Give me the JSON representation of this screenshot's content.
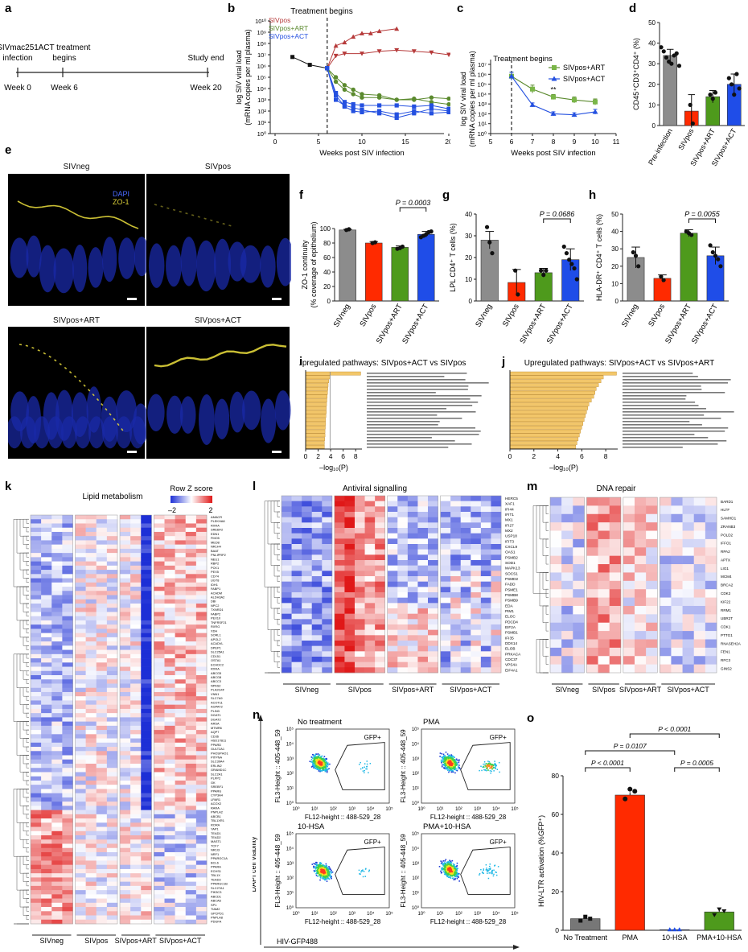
{
  "panel_labels": {
    "a": "a",
    "b": "b",
    "c": "c",
    "d": "d",
    "e": "e",
    "f": "f",
    "g": "g",
    "h": "h",
    "i": "i",
    "j": "j",
    "k": "k",
    "l": "l",
    "m": "m",
    "n": "n",
    "o": "o"
  },
  "colors": {
    "SIVneg": "#8c8c8c",
    "SIVpos": "#ff2a00",
    "SIVpos+ART": "#4e9a1c",
    "SIVpos+ACT": "#1f4de8",
    "b_SIVpos": "#b63a3a",
    "b_ART": "#5b8a2e",
    "b_ACT": "#2450e0",
    "heat_low": "#1d2fd6",
    "heat_high": "#e01818",
    "bar_pathway": "#f2c66a",
    "yellow": "#e0d43a"
  },
  "a": {
    "events": [
      {
        "label": "SIVmac251\ninfection",
        "week": "Week 0"
      },
      {
        "label": "ACT treatment\nbegins",
        "week": "Week 6"
      },
      {
        "label": "Study end",
        "week": "Week 20"
      }
    ]
  },
  "b": {
    "title": "Treatment begins",
    "legend": [
      "SIVpos",
      "SIVpos+ART",
      "SIVpos+ACT"
    ],
    "ylabel_1": "log SIV viral load",
    "ylabel_2": "(mRNA copies per ml plasma)",
    "xlabel": "Weeks post SIV infection",
    "xticks": [
      "0",
      "5",
      "10",
      "15",
      "20"
    ],
    "yticks": [
      "10⁰",
      "10¹",
      "10²",
      "10³",
      "10⁴",
      "10⁵",
      "10⁶",
      "10⁷",
      "10⁸",
      "10⁹",
      "10¹⁰"
    ]
  },
  "c": {
    "title": "Treatment begins",
    "legend": [
      "SIVpos+ART",
      "SIVpos+ACT"
    ],
    "ylabel_1": "log SIV viral load",
    "ylabel_2": "(mRNA copies per ml plasma)",
    "xlabel": "Weeks post SIV infection",
    "xticks": [
      "5",
      "6",
      "7",
      "8",
      "9",
      "10",
      "11"
    ],
    "yticks": [
      "10⁰",
      "10¹",
      "10²",
      "10³",
      "10⁴",
      "10⁵",
      "10⁶",
      "10⁷"
    ],
    "sig": "**"
  },
  "d": {
    "ylabel": "CD45⁺CD3⁺CD4⁺ (%)",
    "yticks": [
      "0",
      "10",
      "20",
      "30",
      "40",
      "50"
    ],
    "categories": [
      "Pre-infection",
      "SIVpos",
      "SIVpos+ART",
      "SIVpos+ACT"
    ]
  },
  "e": {
    "titles": [
      "SIVneg",
      "SIVpos",
      "SIVpos+ART",
      "SIVpos+ACT"
    ],
    "legend_dapi": "DAPI",
    "legend_zo": "ZO-1"
  },
  "f": {
    "ylabel_1": "ZO-1 continuity",
    "ylabel_2": "(% coverage of epithelium)",
    "yticks": [
      "0",
      "20",
      "40",
      "60",
      "80",
      "100"
    ],
    "pval": "P = 0.0003",
    "categories": [
      "SIVneg",
      "SIVpos",
      "SIVpos+ART",
      "SIVpos+ACT"
    ]
  },
  "g": {
    "ylabel": "LPL CD4⁺ T cells (%)",
    "yticks": [
      "0",
      "10",
      "20",
      "30",
      "40"
    ],
    "pval": "P = 0.0686",
    "categories": [
      "SIVneg",
      "SIVpos",
      "SIVpos+ART",
      "SIVpos+ACT"
    ]
  },
  "h": {
    "ylabel": "HLA-DR⁺ CD4⁺ T cells (%)",
    "yticks": [
      "0",
      "10",
      "20",
      "30",
      "40",
      "50"
    ],
    "pval": "P = 0.0055",
    "categories": [
      "SIVneg",
      "SIVpos",
      "SIVpos+ART",
      "SIVpos+ACT"
    ]
  },
  "i": {
    "title": "Upregulated pathways: SIVpos+ACT vs SIVpos",
    "xlabel": "–log₁₀(P)",
    "xticks": [
      "0",
      "2",
      "4",
      "6",
      "8"
    ]
  },
  "j": {
    "title": "Upregulated pathways: SIVpos+ACT vs SIVpos+ART",
    "xlabel": "–log₁₀(P)",
    "xticks": [
      "0",
      "2",
      "4",
      "6",
      "8"
    ]
  },
  "k": {
    "title": "Lipid metabolism",
    "scale_title": "Row Z score",
    "scale_min": "–2",
    "scale_max": "2",
    "groups": [
      "SIVneg",
      "SIVpos",
      "SIVpos+ART",
      "SIVpos+ACT"
    ],
    "genes": [
      "AMACR",
      "PLEKHA8",
      "RXRA",
      "SREBF2",
      "EDN1",
      "FMO5",
      "MED8",
      "NR1H4",
      "BAAT",
      "PNLIPRP2",
      "NEU1",
      "RBP2",
      "PCK1",
      "PEX5",
      "CD74",
      "UGT8",
      "IDH1",
      "FABP1",
      "ACADM",
      "ALDH3A2",
      "DBI",
      "NPC2",
      "TXNRD1",
      "FABP2",
      "PEX10",
      "TNFRSF21",
      "RXRG",
      "XDH",
      "SORL1",
      "APOL2",
      "ACADVL",
      "DPEP1",
      "SLC25A1",
      "CD151",
      "OSTA1",
      "ECHDC2",
      "RXRA",
      "ABCG5",
      "ABCG8",
      "ABCC3",
      "NPAS2",
      "PLA2G4F",
      "VNN1",
      "SLC7A9",
      "ACOT11",
      "AGPAT2",
      "PLIN3",
      "DGAT1",
      "DGAT2",
      "ARSA",
      "MTMR6",
      "AQP7",
      "CD36",
      "HSD17B11",
      "PPARD",
      "GULT2A1",
      "PHOSPHO1",
      "PITPNA",
      "SLC39A4",
      "ERLIN2",
      "GRAMD1C",
      "SLC2A1",
      "PLPP2",
      "GK",
      "SREBF1",
      "PPARG",
      "CYP3A4",
      "LPAR1",
      "ACOX2",
      "RARA",
      "PNPLA2",
      "ABCB1",
      "TBL1XR1",
      "RORA",
      "YAP1",
      "TEAD1",
      "TEAD2",
      "MAST1",
      "TCF7",
      "NR1I3",
      "NRF1",
      "PPARGC1A",
      "BCL6",
      "PPARA",
      "ECHS1",
      "TBL1X",
      "TEAD3",
      "PPARGC1B",
      "SLC27A1",
      "PIK3C3",
      "ABCD1",
      "ABCA6",
      "SP1",
      "TIAM2",
      "GPCPD1",
      "PNPLA8",
      "PDGFA"
    ]
  },
  "l": {
    "title": "Antiviral signalling",
    "groups": [
      "SIVneg",
      "SIVpos",
      "SIVpos+ART",
      "SIVpos+ACT"
    ],
    "genes": [
      "HERC5",
      "XAF1",
      "IFI44",
      "IFIT1",
      "MX1",
      "IFI27",
      "MX2",
      "USP18",
      "IFIT3",
      "CXCL9",
      "OAS1",
      "PSMB2",
      "SOD1",
      "MAPK13",
      "SOCS1",
      "PSMD2",
      "FADD",
      "PSME1",
      "PSMB8",
      "PSMB9",
      "EDA",
      "PIM1",
      "ELOC",
      "PDCD4",
      "EIF2A",
      "PSMB1",
      "IFI35",
      "DDX14",
      "ELOB",
      "PRKACA",
      "CDC37",
      "VPS4A",
      "EIF4A1"
    ]
  },
  "m": {
    "title": "DNA repair",
    "groups": [
      "SIVneg",
      "SIVpos",
      "SIVpos+ART",
      "SIVpos+ACT"
    ],
    "genes": [
      "BARD1",
      "HLTF",
      "SAMHD1",
      "ZRANB3",
      "POLD2",
      "IFFO1",
      "RPA2",
      "APTX",
      "LIG1",
      "MCM4",
      "BRCA2",
      "CDK2",
      "KIF22",
      "RRM1",
      "UBR2T",
      "CDK1",
      "PTTG1",
      "RNASEH2A",
      "FEN1",
      "RFC3",
      "GINS2"
    ]
  },
  "n": {
    "titles": [
      "No treatment",
      "PMA",
      "10-HSA",
      "PMA+10-HSA"
    ],
    "gate": "GFP+",
    "ylabel": "FL3-Height :: 405-448_59",
    "xlabel": "FL12-height :: 488-529_28",
    "outer_y": "DAPI cell viability",
    "outer_x": "HIV-GFP488",
    "ticks": [
      "10⁰",
      "10¹",
      "10²",
      "10³",
      "10⁴",
      "10⁵"
    ]
  },
  "o": {
    "ylabel": "HIV-LTR activation (%GFP⁺)",
    "yticks": [
      "0",
      "20",
      "40",
      "60",
      "80"
    ],
    "categories": [
      "No Treatment",
      "PMA",
      "10-HSA",
      "PMA+10-HSA"
    ],
    "pvals": [
      "P < 0.0001",
      "P = 0.0107",
      "P < 0.0001",
      "P = 0.0005"
    ]
  },
  "chart_data": [
    {
      "id": "b",
      "type": "line",
      "title": "Treatment begins",
      "xlabel": "Weeks post SIV infection",
      "ylabel": "log SIV viral load (mRNA copies per ml plasma)",
      "xlim": [
        0,
        20
      ],
      "ylim": [
        0,
        10
      ],
      "yscale": "log10",
      "series": [
        {
          "name": "SIVpos",
          "x": [
            7,
            8,
            9,
            10,
            11,
            12,
            14
          ],
          "y": [
            7.8,
            8.1,
            8.6,
            8.9,
            8.9,
            9.1,
            9.3
          ]
        },
        {
          "name": "SIVpos",
          "x": [
            7,
            8,
            10,
            12,
            14,
            16,
            18,
            20
          ],
          "y": [
            6.9,
            7.1,
            7.1,
            7.3,
            7.4,
            7.3,
            7.2,
            7.0
          ]
        },
        {
          "name": "SIVpos+ART",
          "x": [
            6,
            7,
            8,
            9,
            10,
            12,
            14,
            16,
            18,
            20
          ],
          "y": [
            5.8,
            4.6,
            3.9,
            3.5,
            3.2,
            3.2,
            3.0,
            3.0,
            3.2,
            3.1
          ]
        },
        {
          "name": "SIVpos+ART",
          "x": [
            6,
            7,
            8,
            9,
            10,
            12,
            14,
            16,
            18,
            20
          ],
          "y": [
            5.8,
            5.0,
            4.3,
            3.9,
            3.5,
            3.4,
            3.0,
            3.1,
            2.8,
            2.6
          ]
        },
        {
          "name": "SIVpos+ACT",
          "x": [
            6,
            7,
            8,
            9,
            10,
            12,
            14,
            16,
            18,
            20
          ],
          "y": [
            5.8,
            3.4,
            2.4,
            2.0,
            1.9,
            2.0,
            1.7,
            2.0,
            1.8,
            1.9
          ]
        },
        {
          "name": "SIVpos+ACT",
          "x": [
            6,
            7,
            8,
            9,
            10,
            12,
            14,
            16,
            18,
            20
          ],
          "y": [
            5.8,
            3.0,
            2.5,
            2.3,
            2.1,
            1.8,
            1.4,
            1.8,
            2.2,
            2.0
          ]
        },
        {
          "name": "SIVpos+ACT",
          "x": [
            6,
            7,
            8,
            9,
            10,
            12,
            14,
            16,
            18,
            20
          ],
          "y": [
            5.8,
            3.6,
            2.8,
            2.6,
            2.5,
            2.5,
            2.5,
            2.4,
            2.5,
            2.2
          ]
        }
      ],
      "pre_treatment": {
        "x": [
          2,
          4,
          6
        ],
        "y": [
          6.8,
          6.1,
          5.8
        ]
      }
    },
    {
      "id": "c",
      "type": "line",
      "title": "Treatment begins",
      "xlabel": "Weeks post SIV infection",
      "xlim": [
        5,
        11
      ],
      "ylim": [
        0,
        7
      ],
      "yscale": "log10",
      "series": [
        {
          "name": "SIVpos+ART",
          "x": [
            6,
            7,
            8,
            9,
            10
          ],
          "y": [
            5.8,
            4.5,
            3.7,
            3.4,
            3.2
          ],
          "err": [
            0.4,
            0.4,
            0.25,
            0.3,
            0.3
          ]
        },
        {
          "name": "SIVpos+ACT",
          "x": [
            6,
            7,
            8,
            9,
            10
          ],
          "y": [
            5.8,
            2.9,
            2.0,
            1.9,
            2.2
          ],
          "err": [
            0.4,
            0.2,
            0.2,
            0.2,
            0.25
          ]
        }
      ]
    },
    {
      "id": "d",
      "type": "bar",
      "ylabel": "CD45⁺CD3⁺CD4⁺ (%)",
      "ylim": [
        0,
        50
      ],
      "categories": [
        "Pre-infection",
        "SIVpos",
        "SIVpos+ART",
        "SIVpos+ACT"
      ],
      "values": [
        34,
        7,
        14,
        20
      ],
      "err": [
        3,
        8,
        3,
        5
      ]
    },
    {
      "id": "f",
      "type": "bar",
      "ylabel": "ZO-1 continuity (% coverage of epithelium)",
      "ylim": [
        0,
        100
      ],
      "categories": [
        "SIVneg",
        "SIVpos",
        "SIVpos+ART",
        "SIVpos+ACT"
      ],
      "values": [
        98,
        80,
        74,
        92
      ],
      "err": [
        1,
        2,
        2,
        4
      ]
    },
    {
      "id": "g",
      "type": "bar",
      "ylabel": "LPL CD4⁺ T cells (%)",
      "ylim": [
        0,
        40
      ],
      "categories": [
        "SIVneg",
        "SIVpos",
        "SIVpos+ART",
        "SIVpos+ACT"
      ],
      "values": [
        28,
        8.5,
        13,
        19
      ],
      "err": [
        4,
        6,
        2,
        5
      ]
    },
    {
      "id": "h",
      "type": "bar",
      "ylabel": "HLA-DR⁺ CD4⁺ T cells (%)",
      "ylim": [
        0,
        50
      ],
      "categories": [
        "SIVneg",
        "SIVpos",
        "SIVpos+ART",
        "SIVpos+ACT"
      ],
      "values": [
        25,
        13,
        39,
        26
      ],
      "err": [
        6,
        2,
        2,
        5
      ]
    },
    {
      "id": "i",
      "type": "bar",
      "orientation": "horizontal",
      "xlabel": "–log₁₀(P)",
      "xlim": [
        0,
        9
      ],
      "values": [
        8.8,
        3.9,
        3.7,
        3.6,
        3.55,
        3.5,
        3.45,
        3.4,
        3.35,
        3.3,
        3.3,
        3.25,
        3.2,
        3.2,
        3.15,
        3.1,
        3.1,
        3.05,
        3.0,
        3.0
      ]
    },
    {
      "id": "j",
      "type": "bar",
      "orientation": "horizontal",
      "xlabel": "–log₁₀(P)",
      "xlim": [
        0,
        9
      ],
      "values": [
        8.9,
        7.8,
        7.6,
        7.4,
        7.2,
        7.1,
        7.0,
        6.8,
        6.6,
        6.5,
        6.4,
        6.3,
        6.2,
        6.1,
        6.0,
        5.9,
        5.8,
        5.7,
        5.6,
        5.5
      ]
    },
    {
      "id": "o",
      "type": "bar",
      "ylabel": "HIV-LTR activation (%GFP⁺)",
      "ylim": [
        0,
        80
      ],
      "categories": [
        "No Treatment",
        "PMA",
        "10-HSA",
        "PMA+10-HSA"
      ],
      "values": [
        6,
        70,
        0.3,
        9.5
      ],
      "err": [
        1,
        1.5,
        0.2,
        1.5
      ]
    }
  ]
}
